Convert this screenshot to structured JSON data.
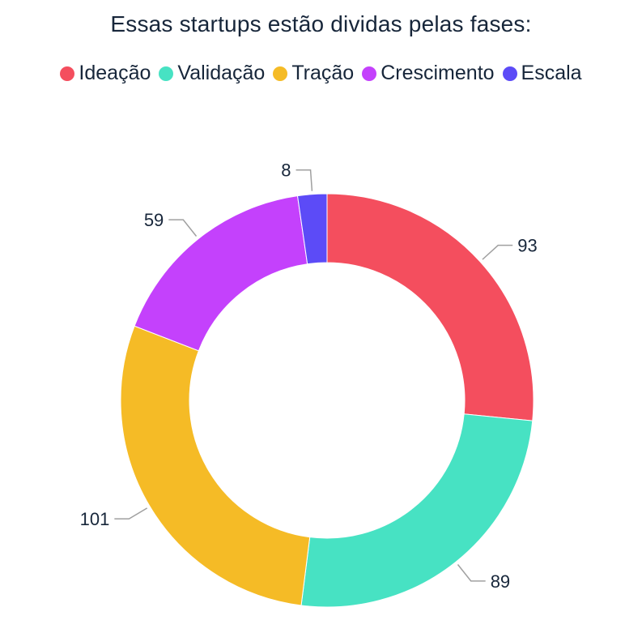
{
  "chart_data": {
    "type": "pie",
    "variant": "donut",
    "title": "Essas startups estão dividas pelas fases:",
    "legend_position": "top",
    "categories": [
      "Ideação",
      "Validação",
      "Tração",
      "Crescimento",
      "Escala"
    ],
    "values": [
      93,
      89,
      101,
      59,
      8
    ],
    "colors": [
      "#f44e5e",
      "#47e2c3",
      "#f5bb26",
      "#c441fc",
      "#5c4bf7"
    ],
    "labels": [
      "93",
      "89",
      "101",
      "59",
      "8"
    ]
  }
}
